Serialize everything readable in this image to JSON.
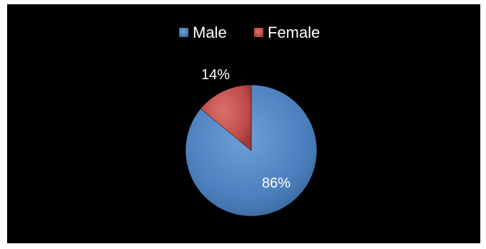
{
  "chart_data": {
    "type": "pie",
    "categories": [
      "Male",
      "Female"
    ],
    "values": [
      86,
      14
    ],
    "data_labels": [
      "86%",
      "14%"
    ],
    "colors": [
      "#4a7ebb",
      "#be4b48"
    ],
    "legend_position": "top",
    "background": "#000000",
    "start_angle": "12 o'clock",
    "direction": "clockwise"
  }
}
